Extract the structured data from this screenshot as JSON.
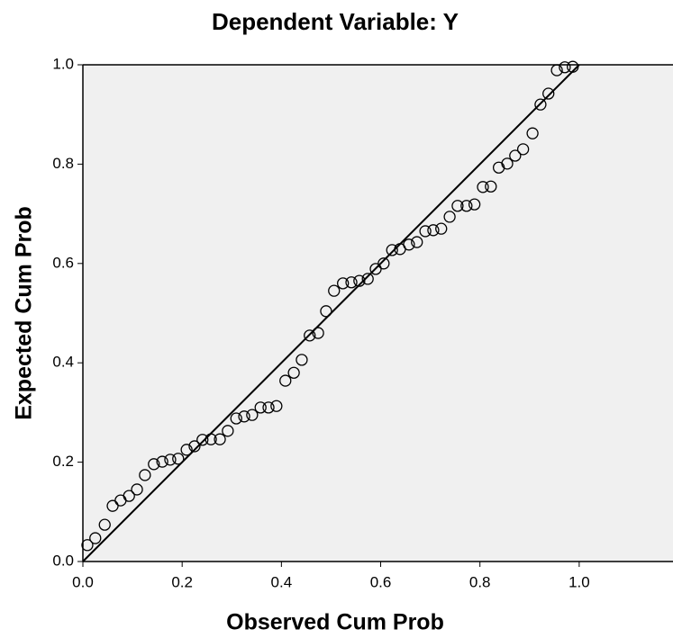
{
  "chart_data": {
    "type": "scatter",
    "title": "Dependent Variable: Y",
    "x_label": "Observed Cum Prob",
    "y_label": "Expected Cum Prob",
    "x": [
      0.009,
      0.025,
      0.044,
      0.06,
      0.076,
      0.093,
      0.109,
      0.125,
      0.143,
      0.16,
      0.176,
      0.192,
      0.209,
      0.225,
      0.241,
      0.258,
      0.276,
      0.292,
      0.309,
      0.325,
      0.341,
      0.358,
      0.374,
      0.39,
      0.408,
      0.425,
      0.441,
      0.457,
      0.474,
      0.49,
      0.506,
      0.524,
      0.541,
      0.557,
      0.574,
      0.59,
      0.606,
      0.623,
      0.639,
      0.657,
      0.673,
      0.69,
      0.706,
      0.722,
      0.739,
      0.755,
      0.773,
      0.789,
      0.806,
      0.822,
      0.838,
      0.855,
      0.871,
      0.887,
      0.906,
      0.922,
      0.938,
      0.955,
      0.971,
      0.987
    ],
    "y": [
      0.033,
      0.047,
      0.074,
      0.112,
      0.123,
      0.132,
      0.145,
      0.174,
      0.196,
      0.201,
      0.205,
      0.207,
      0.225,
      0.232,
      0.245,
      0.246,
      0.246,
      0.263,
      0.288,
      0.292,
      0.295,
      0.31,
      0.31,
      0.313,
      0.364,
      0.38,
      0.406,
      0.455,
      0.46,
      0.504,
      0.545,
      0.56,
      0.562,
      0.565,
      0.569,
      0.589,
      0.6,
      0.627,
      0.629,
      0.638,
      0.643,
      0.665,
      0.667,
      0.67,
      0.694,
      0.716,
      0.716,
      0.719,
      0.754,
      0.755,
      0.793,
      0.801,
      0.817,
      0.83,
      0.862,
      0.92,
      0.942,
      0.989,
      0.995,
      0.996
    ],
    "reference_line": {
      "x": [
        0,
        1
      ],
      "y": [
        0,
        1
      ]
    },
    "marker_color": "#000000",
    "background": "#f0f0f0",
    "xlim": [
      0,
      1.189
    ],
    "ylim": [
      0,
      1
    ],
    "xticks": [
      {
        "value": 0,
        "label": "0.0"
      },
      0.2,
      0.4,
      0.6,
      0.8,
      {
        "value": 1,
        "label": "1.0"
      }
    ],
    "yticks": [
      {
        "value": 0,
        "label": "0.0"
      },
      0.2,
      0.4,
      0.6,
      0.8,
      {
        "value": 1,
        "label": "1.0"
      }
    ]
  }
}
